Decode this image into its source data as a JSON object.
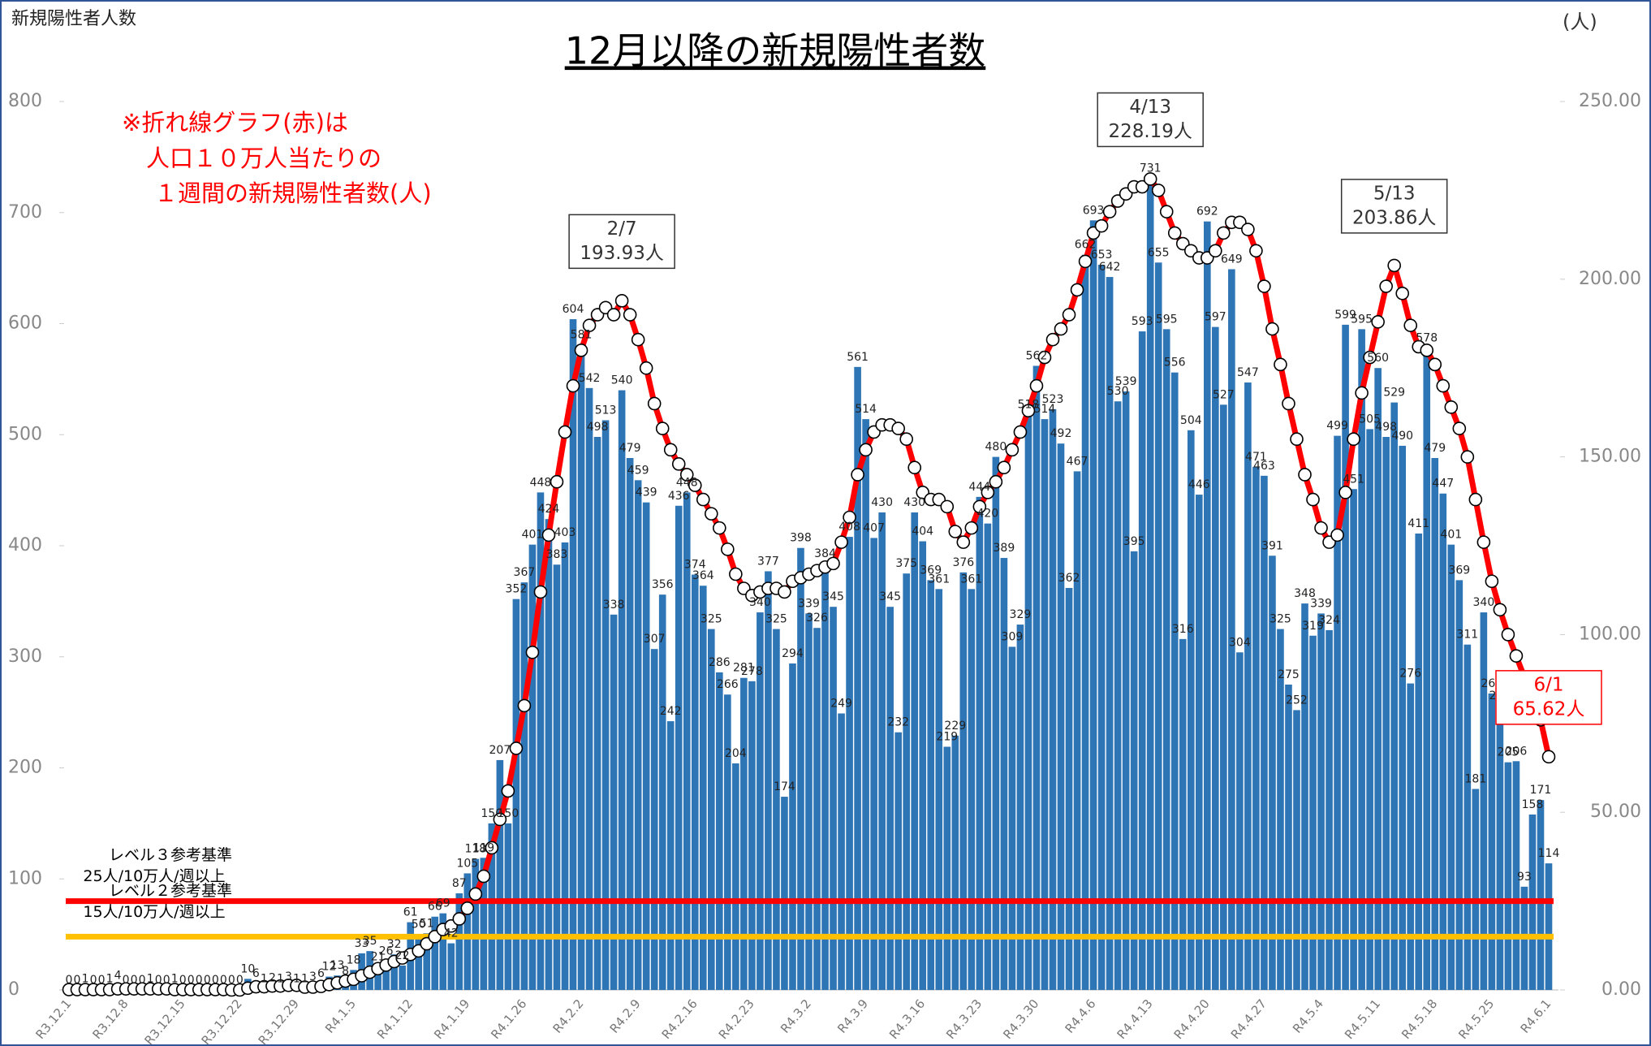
{
  "chart_data": {
    "type": "bar",
    "title": "12月以降の新規陽性者数",
    "y_label": "新規陽性者人数",
    "y2_label": "(人)",
    "note": [
      "※折れ線グラフ(赤)は",
      "人口１０万人当たりの",
      "１週間の新規陽性者数(人)"
    ],
    "categories": [
      "R3.12.1",
      null,
      null,
      null,
      null,
      null,
      null,
      "R3.12.8",
      null,
      null,
      null,
      null,
      null,
      null,
      "R3.12.15",
      null,
      null,
      null,
      null,
      null,
      null,
      "R3.12.22",
      null,
      null,
      null,
      null,
      null,
      null,
      "R3.12.29",
      null,
      null,
      null,
      null,
      null,
      null,
      "R4.1.5",
      null,
      null,
      null,
      null,
      null,
      null,
      "R4.1.12",
      null,
      null,
      null,
      null,
      null,
      null,
      "R4.1.19",
      null,
      null,
      null,
      null,
      null,
      null,
      "R4.1.26",
      null,
      null,
      null,
      null,
      null,
      null,
      "R4.2.2",
      null,
      null,
      null,
      null,
      null,
      null,
      "R4.2.9",
      null,
      null,
      null,
      null,
      null,
      null,
      "R4.2.16",
      null,
      null,
      null,
      null,
      null,
      null,
      "R4.2.23",
      null,
      null,
      null,
      null,
      null,
      null,
      "R4.3.2",
      null,
      null,
      null,
      null,
      null,
      null,
      "R4.3.9",
      null,
      null,
      null,
      null,
      null,
      null,
      "R4.3.16",
      null,
      null,
      null,
      null,
      null,
      null,
      "R4.3.23",
      null,
      null,
      null,
      null,
      null,
      null,
      "R4.3.30",
      null,
      null,
      null,
      null,
      null,
      null,
      "R4.4.6",
      null,
      null,
      null,
      null,
      null,
      null,
      "R4.4.13",
      null,
      null,
      null,
      null,
      null,
      null,
      "R4.4.20",
      null,
      null,
      null,
      null,
      null,
      null,
      "R4.4.27",
      null,
      null,
      null,
      null,
      null,
      null,
      "R4.5.4",
      null,
      null,
      null,
      null,
      null,
      null,
      "R4.5.11",
      null,
      null,
      null,
      null,
      null,
      null,
      "R4.5.18",
      null,
      null,
      null,
      null,
      null,
      null,
      "R4.5.25",
      null,
      null,
      null,
      null,
      null,
      null,
      "R4.6.1"
    ],
    "series": [
      {
        "type": "bar",
        "color": "#2e75b6",
        "values": [
          0,
          0,
          1,
          0,
          0,
          1,
          4,
          0,
          0,
          0,
          1,
          0,
          0,
          1,
          0,
          0,
          0,
          0,
          0,
          0,
          0,
          0,
          10,
          6,
          1,
          2,
          1,
          3,
          1,
          1,
          3,
          6,
          12,
          13,
          8,
          18,
          33,
          35,
          21,
          26,
          32,
          22,
          61,
          50,
          51,
          66,
          69,
          42,
          87,
          105,
          118,
          119,
          150,
          207,
          150,
          352,
          367,
          401,
          448,
          424,
          383,
          403,
          604,
          581,
          542,
          498,
          513,
          338,
          540,
          479,
          459,
          439,
          307,
          356,
          242,
          436,
          448,
          374,
          364,
          325,
          286,
          266,
          204,
          281,
          278,
          340,
          377,
          325,
          174,
          294,
          398,
          339,
          326,
          384,
          345,
          249,
          408,
          561,
          514,
          407,
          430,
          345,
          232,
          375,
          430,
          404,
          369,
          361,
          219,
          229,
          376,
          361,
          444,
          420,
          480,
          389,
          309,
          329,
          518,
          562,
          514,
          523,
          492,
          362,
          467,
          662,
          693,
          653,
          642,
          530,
          539,
          395,
          593,
          731,
          655,
          595,
          556,
          316,
          504,
          446,
          692,
          597,
          527,
          649,
          304,
          547,
          471,
          463,
          391,
          325,
          275,
          252,
          348,
          319,
          339,
          324,
          499,
          599,
          451,
          595,
          505,
          560,
          498,
          529,
          490,
          276,
          411,
          578,
          479,
          447,
          401,
          369,
          311,
          181,
          340,
          267,
          256,
          205,
          206,
          93,
          158,
          171,
          114
        ]
      },
      {
        "type": "line",
        "axis": "y2",
        "color": "#ff0000",
        "values": [
          0.1,
          0.1,
          0.1,
          0.1,
          0.1,
          0.1,
          0.3,
          0.3,
          0.3,
          0.3,
          0.3,
          0.3,
          0.3,
          0.1,
          0.1,
          0.1,
          0.1,
          0.1,
          0.1,
          0.1,
          0,
          0,
          0.5,
          0.9,
          0.9,
          1.1,
          1.1,
          1.3,
          1.3,
          0.8,
          0.8,
          1,
          1.5,
          2,
          2.5,
          3,
          4,
          5,
          6,
          7,
          8,
          9,
          10,
          11,
          13,
          15,
          17,
          18,
          20,
          23,
          27,
          32,
          40,
          48,
          56,
          68,
          80,
          95,
          112,
          128,
          143,
          157,
          170,
          180,
          187,
          190,
          192,
          190,
          193.93,
          190,
          183,
          175,
          165,
          158,
          152,
          148,
          145,
          142,
          138,
          134,
          130,
          124,
          117,
          113,
          111,
          112,
          113,
          113,
          112,
          115,
          116,
          117,
          118,
          119,
          120,
          126,
          133,
          145,
          152,
          157,
          159,
          159,
          158,
          155,
          147,
          140,
          138,
          138,
          136,
          129,
          126,
          130,
          136,
          140,
          143,
          147,
          152,
          157,
          163,
          170,
          178,
          183,
          186,
          190,
          197,
          205,
          213,
          215,
          219,
          222,
          224,
          226,
          226,
          228.19,
          225,
          219,
          213,
          210,
          208,
          206,
          206,
          208,
          213,
          216,
          216,
          214,
          208,
          198,
          186,
          176,
          165,
          155,
          145,
          138,
          130,
          126,
          128,
          140,
          155,
          168,
          178,
          188,
          198,
          203.86,
          196,
          187,
          181,
          180,
          176,
          170,
          164,
          158,
          150,
          138,
          126,
          115,
          107,
          100,
          94,
          88,
          81,
          76,
          65.62
        ]
      }
    ],
    "ylim": [
      0,
      800
    ],
    "yticks": [
      0,
      100,
      200,
      300,
      400,
      500,
      600,
      700,
      800
    ],
    "y2lim": [
      0,
      250
    ],
    "y2ticks": [
      {
        "value": 0,
        "label": "0.00"
      },
      {
        "value": 50,
        "label": "50.00"
      },
      {
        "value": 100,
        "label": "100.00"
      },
      {
        "value": 150,
        "label": "150.00"
      },
      {
        "value": 200,
        "label": "200.00"
      },
      {
        "value": 250,
        "label": "250.00"
      }
    ],
    "reference_lines": [
      {
        "value": 25,
        "axis": "y2",
        "color": "#ff0000",
        "label": [
          "レベル３参考基準",
          "25人/10万人/週以上"
        ]
      },
      {
        "value": 15,
        "axis": "y2",
        "color": "#ffc000",
        "label": [
          "レベル２参考基準",
          "15人/10万人/週以上"
        ]
      }
    ],
    "annotations": [
      {
        "label": "2/7",
        "value": 193.93,
        "value_label": "193.93人",
        "color": "#333333"
      },
      {
        "label": "4/13",
        "value": 228.19,
        "value_label": "228.19人",
        "color": "#333333"
      },
      {
        "label": "5/13",
        "value": 203.86,
        "value_label": "203.86人",
        "color": "#333333"
      },
      {
        "label": "6/1",
        "value": 65.62,
        "value_label": "65.62人",
        "color": "#ff0000"
      }
    ]
  }
}
